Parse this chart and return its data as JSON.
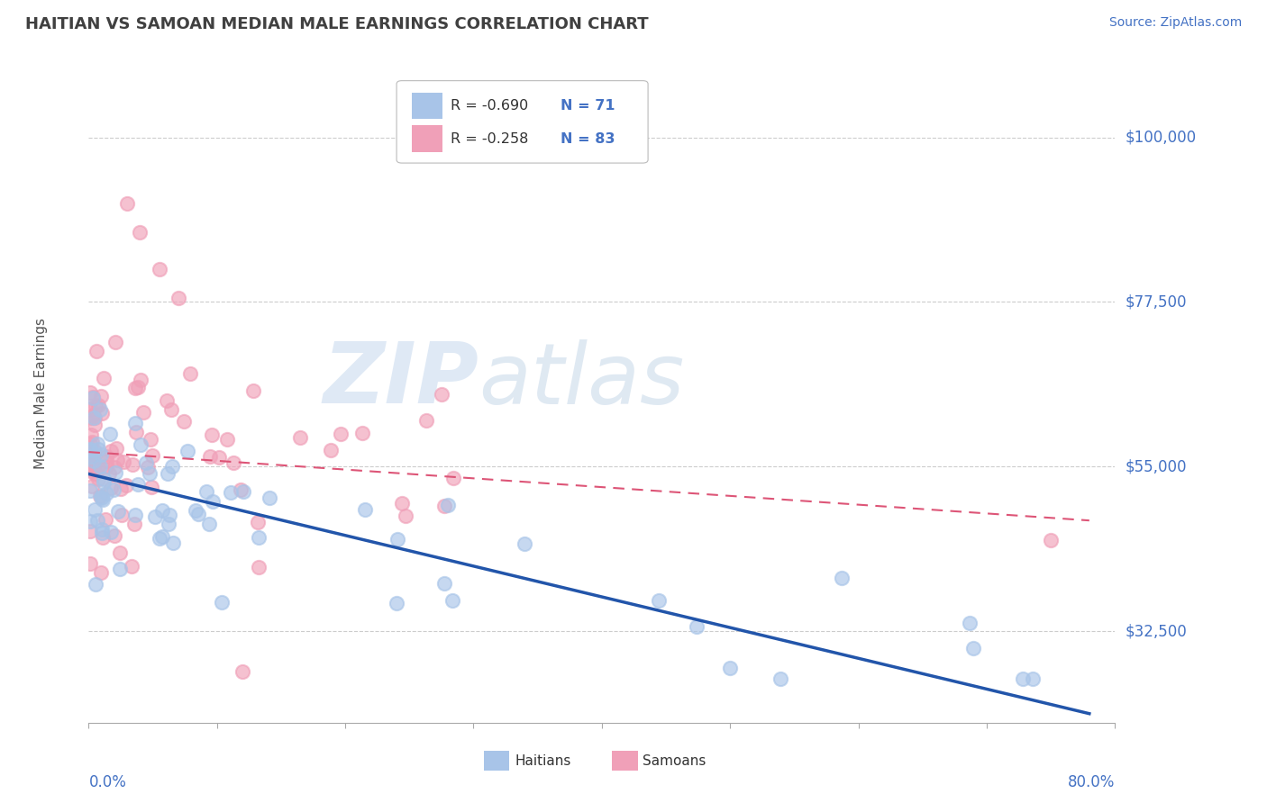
{
  "title": "HAITIAN VS SAMOAN MEDIAN MALE EARNINGS CORRELATION CHART",
  "source": "Source: ZipAtlas.com",
  "ylabel": "Median Male Earnings",
  "yticks": [
    32500,
    55000,
    77500,
    100000
  ],
  "ytick_labels": [
    "$32,500",
    "$55,000",
    "$77,500",
    "$100,000"
  ],
  "xlim": [
    0.0,
    0.8
  ],
  "ylim": [
    20000,
    110000
  ],
  "haitian_color": "#a8c4e8",
  "samoan_color": "#f0a0b8",
  "haitian_line_color": "#2255aa",
  "samoan_line_color": "#dd5577",
  "legend_R_haitian": "-0.690",
  "legend_N_haitian": "71",
  "legend_R_samoan": "-0.258",
  "legend_N_samoan": "83",
  "watermark_ZIP": "ZIP",
  "watermark_atlas": "atlas",
  "background_color": "#ffffff",
  "grid_color": "#cccccc",
  "axis_label_color": "#4472c4",
  "title_color": "#404040",
  "legend_text_color": "#333333"
}
